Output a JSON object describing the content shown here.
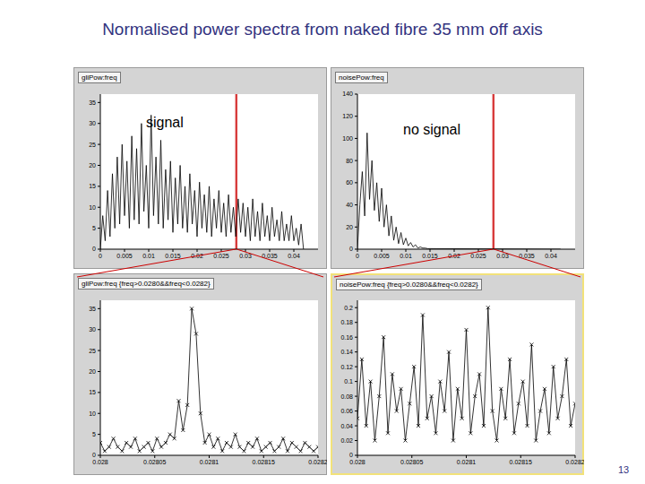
{
  "title": "Normalised power spectra from naked fibre 35 mm off axis",
  "page_number": "13",
  "chart_data": [
    {
      "type": "line",
      "title": "gliPow:freq",
      "annotation": "signal",
      "color": "#000000",
      "grid": false,
      "x": [
        0,
        0.0005,
        0.001,
        0.0015,
        0.002,
        0.0025,
        0.003,
        0.0035,
        0.004,
        0.0045,
        0.005,
        0.0055,
        0.006,
        0.0065,
        0.007,
        0.0075,
        0.008,
        0.0085,
        0.009,
        0.0095,
        0.01,
        0.0105,
        0.011,
        0.0115,
        0.012,
        0.0125,
        0.013,
        0.0135,
        0.014,
        0.0145,
        0.015,
        0.0155,
        0.016,
        0.0165,
        0.017,
        0.0175,
        0.018,
        0.0185,
        0.019,
        0.0195,
        0.02,
        0.0205,
        0.021,
        0.0215,
        0.022,
        0.0225,
        0.023,
        0.0235,
        0.024,
        0.0245,
        0.025,
        0.0255,
        0.026,
        0.0265,
        0.027,
        0.0275,
        0.028,
        0.0285,
        0.029,
        0.0295,
        0.03,
        0.0305,
        0.031,
        0.0315,
        0.032,
        0.0325,
        0.033,
        0.0335,
        0.034,
        0.0345,
        0.035,
        0.0355,
        0.036,
        0.0365,
        0.037,
        0.0375,
        0.038,
        0.0385,
        0.039,
        0.0395,
        0.04,
        0.0405,
        0.041,
        0.0415,
        0.042
      ],
      "values": [
        0,
        8,
        2,
        14,
        3,
        18,
        5,
        22,
        6,
        25,
        8,
        21,
        5,
        27,
        7,
        24,
        6,
        30,
        9,
        20,
        5,
        32,
        8,
        22,
        6,
        26,
        5,
        19,
        7,
        21,
        4,
        17,
        6,
        20,
        5,
        15,
        4,
        18,
        6,
        14,
        3,
        16,
        5,
        13,
        4,
        15,
        3,
        12,
        5,
        14,
        4,
        11,
        3,
        13,
        4,
        10,
        3,
        12,
        4,
        11,
        3,
        10,
        2,
        12,
        3,
        9,
        2,
        11,
        3,
        8,
        2,
        10,
        3,
        7,
        2,
        9,
        2,
        6,
        2,
        8,
        2,
        5,
        1,
        6,
        0
      ],
      "xlim": [
        0,
        0.045
      ],
      "xticks": [
        0,
        0.005,
        0.01,
        0.015,
        0.02,
        0.025,
        0.03,
        0.035,
        0.04
      ],
      "ylim": [
        0,
        37
      ],
      "yticks": [
        0,
        5,
        10,
        15,
        20,
        25,
        30,
        35
      ]
    },
    {
      "type": "line",
      "title": "noisePow:freq",
      "annotation": "no signal",
      "color": "#000000",
      "grid": false,
      "x": [
        0,
        0.0005,
        0.001,
        0.0015,
        0.002,
        0.0025,
        0.003,
        0.0035,
        0.004,
        0.0045,
        0.005,
        0.0055,
        0.006,
        0.0065,
        0.007,
        0.0075,
        0.008,
        0.0085,
        0.009,
        0.0095,
        0.01,
        0.0105,
        0.011,
        0.0115,
        0.012,
        0.0125,
        0.013,
        0.0135,
        0.014,
        0.0145,
        0.015,
        0.042
      ],
      "values": [
        0,
        40,
        70,
        30,
        105,
        45,
        80,
        35,
        60,
        25,
        55,
        20,
        40,
        12,
        30,
        8,
        20,
        5,
        15,
        4,
        10,
        3,
        6,
        2,
        4,
        1,
        2,
        1,
        1,
        0.5,
        0.5,
        0
      ],
      "xlim": [
        0,
        0.045
      ],
      "xticks": [
        0,
        0.005,
        0.01,
        0.015,
        0.02,
        0.025,
        0.03,
        0.035,
        0.04
      ],
      "ylim": [
        0,
        140
      ],
      "yticks": [
        0,
        20,
        40,
        60,
        80,
        100,
        120,
        140
      ]
    },
    {
      "type": "line",
      "title": "gliPow:freq {freq>0.0280&&freq<0.0282}",
      "color": "#000000",
      "marker": "x",
      "grid": false,
      "x": [
        0.028,
        0.028004,
        0.028008,
        0.028012,
        0.028016,
        0.02802,
        0.028024,
        0.028028,
        0.028032,
        0.028036,
        0.02804,
        0.028044,
        0.028048,
        0.028052,
        0.028056,
        0.02806,
        0.028064,
        0.028068,
        0.028072,
        0.028076,
        0.02808,
        0.028084,
        0.028088,
        0.028092,
        0.028096,
        0.0281,
        0.028104,
        0.028108,
        0.028112,
        0.028116,
        0.02812,
        0.028124,
        0.028128,
        0.028132,
        0.028136,
        0.02814,
        0.028144,
        0.028148,
        0.028152,
        0.028156,
        0.02816,
        0.028164,
        0.028168,
        0.028172,
        0.028176,
        0.02818,
        0.028184,
        0.028188,
        0.028192,
        0.028196,
        0.0282
      ],
      "values": [
        3,
        1,
        2,
        4,
        2,
        1,
        3,
        2,
        4,
        1,
        2,
        3,
        1,
        4,
        2,
        3,
        5,
        4,
        13,
        6,
        12,
        35,
        29,
        10,
        3,
        5,
        2,
        4,
        1,
        3,
        2,
        5,
        2,
        1,
        3,
        2,
        4,
        1,
        2,
        3,
        1,
        2,
        4,
        1,
        3,
        2,
        1,
        3,
        2,
        1,
        2
      ],
      "xlim": [
        0.028,
        0.0282
      ],
      "xticks": [
        0.028,
        0.02805,
        0.0281,
        0.02815,
        0.0282
      ],
      "ylim": [
        0,
        37
      ],
      "yticks": [
        0,
        5,
        10,
        15,
        20,
        25,
        30,
        35
      ]
    },
    {
      "type": "line",
      "title": "noisePow:freq {freq>0.0280&&freq<0.0282}",
      "color": "#000000",
      "marker": "x",
      "grid": false,
      "x": [
        0.028,
        0.028004,
        0.028008,
        0.028012,
        0.028016,
        0.02802,
        0.028024,
        0.028028,
        0.028032,
        0.028036,
        0.02804,
        0.028044,
        0.028048,
        0.028052,
        0.028056,
        0.02806,
        0.028064,
        0.028068,
        0.028072,
        0.028076,
        0.02808,
        0.028084,
        0.028088,
        0.028092,
        0.028096,
        0.0281,
        0.028104,
        0.028108,
        0.028112,
        0.028116,
        0.02812,
        0.028124,
        0.028128,
        0.028132,
        0.028136,
        0.02814,
        0.028144,
        0.028148,
        0.028152,
        0.028156,
        0.02816,
        0.028164,
        0.028168,
        0.028172,
        0.028176,
        0.02818,
        0.028184,
        0.028188,
        0.028192,
        0.028196,
        0.0282
      ],
      "values": [
        0.05,
        0.13,
        0.04,
        0.1,
        0.02,
        0.08,
        0.16,
        0.03,
        0.11,
        0.06,
        0.09,
        0.02,
        0.07,
        0.12,
        0.04,
        0.19,
        0.05,
        0.08,
        0.03,
        0.1,
        0.06,
        0.14,
        0.02,
        0.09,
        0.05,
        0.17,
        0.03,
        0.08,
        0.11,
        0.04,
        0.2,
        0.06,
        0.02,
        0.09,
        0.05,
        0.13,
        0.03,
        0.07,
        0.1,
        0.04,
        0.15,
        0.02,
        0.06,
        0.09,
        0.03,
        0.12,
        0.05,
        0.08,
        0.13,
        0.04,
        0.07
      ],
      "xlim": [
        0.028,
        0.0282
      ],
      "xticks": [
        0.028,
        0.02805,
        0.0281,
        0.02815,
        0.0282
      ],
      "ylim": [
        0,
        0.21
      ],
      "yticks": [
        0,
        0.02,
        0.04,
        0.06,
        0.08,
        0.1,
        0.12,
        0.14,
        0.16,
        0.18,
        0.2
      ]
    }
  ]
}
